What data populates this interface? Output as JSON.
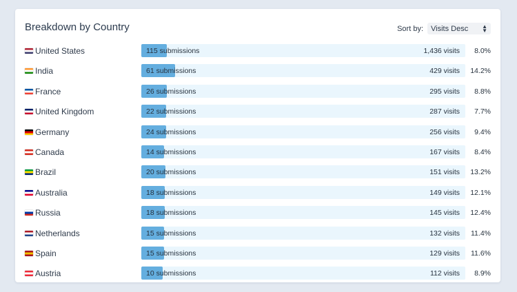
{
  "panel": {
    "title": "Breakdown by Country",
    "sort_label": "Sort by:",
    "sort_value": "Visits Desc"
  },
  "rows": [
    {
      "name": "United States",
      "submissions_label": "115 submissions",
      "submissions": 115,
      "visits_label": "1,436 visits",
      "pct": "8.0%",
      "flag": [
        "#b22234",
        "#ffffff",
        "#3c3b6e"
      ]
    },
    {
      "name": "India",
      "submissions_label": "61 submissions",
      "submissions": 61,
      "visits_label": "429 visits",
      "pct": "14.2%",
      "flag": [
        "#ff9933",
        "#ffffff",
        "#138808"
      ]
    },
    {
      "name": "France",
      "submissions_label": "26 submissions",
      "submissions": 26,
      "visits_label": "295 visits",
      "pct": "8.8%",
      "flag": [
        "#0055a4",
        "#ffffff",
        "#ef4135"
      ]
    },
    {
      "name": "United Kingdom",
      "submissions_label": "22 submissions",
      "submissions": 22,
      "visits_label": "287 visits",
      "pct": "7.7%",
      "flag": [
        "#012169",
        "#ffffff",
        "#c8102e"
      ]
    },
    {
      "name": "Germany",
      "submissions_label": "24 submissions",
      "submissions": 24,
      "visits_label": "256 visits",
      "pct": "9.4%",
      "flag": [
        "#000000",
        "#dd0000",
        "#ffce00"
      ]
    },
    {
      "name": "Canada",
      "submissions_label": "14 submissions",
      "submissions": 14,
      "visits_label": "167 visits",
      "pct": "8.4%",
      "flag": [
        "#d52b1e",
        "#ffffff",
        "#d52b1e"
      ]
    },
    {
      "name": "Brazil",
      "submissions_label": "20 submissions",
      "submissions": 20,
      "visits_label": "151 visits",
      "pct": "13.2%",
      "flag": [
        "#009c3b",
        "#ffdf00",
        "#002776"
      ]
    },
    {
      "name": "Australia",
      "submissions_label": "18 submissions",
      "submissions": 18,
      "visits_label": "149 visits",
      "pct": "12.1%",
      "flag": [
        "#00008b",
        "#ffffff",
        "#e4002b"
      ]
    },
    {
      "name": "Russia",
      "submissions_label": "18 submissions",
      "submissions": 18,
      "visits_label": "145 visits",
      "pct": "12.4%",
      "flag": [
        "#ffffff",
        "#0039a6",
        "#d52b1e"
      ]
    },
    {
      "name": "Netherlands",
      "submissions_label": "15 submissions",
      "submissions": 15,
      "visits_label": "132 visits",
      "pct": "11.4%",
      "flag": [
        "#ae1c28",
        "#ffffff",
        "#21468b"
      ]
    },
    {
      "name": "Spain",
      "submissions_label": "15 submissions",
      "submissions": 15,
      "visits_label": "129 visits",
      "pct": "11.6%",
      "flag": [
        "#aa151b",
        "#f1bf00",
        "#aa151b"
      ]
    },
    {
      "name": "Austria",
      "submissions_label": "10 submissions",
      "submissions": 10,
      "visits_label": "112 visits",
      "pct": "8.9%",
      "flag": [
        "#ed2939",
        "#ffffff",
        "#ed2939"
      ]
    }
  ]
}
